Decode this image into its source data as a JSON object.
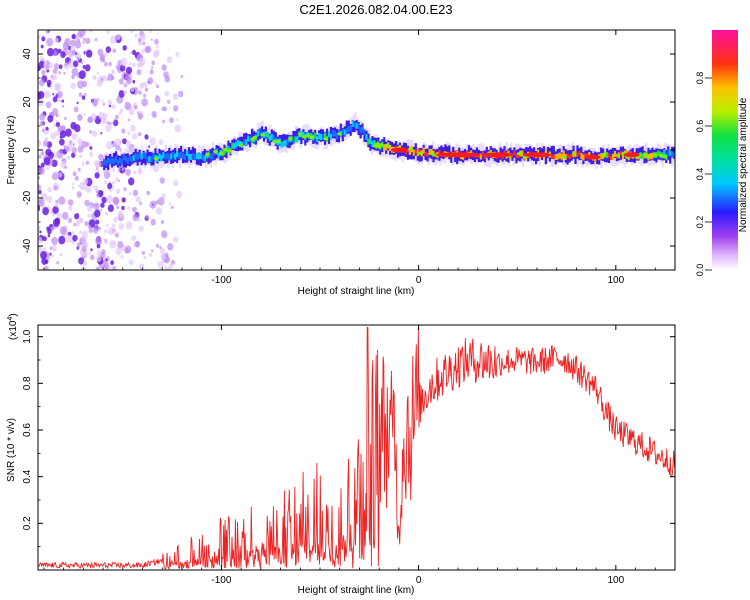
{
  "title": "C2E1.2026.082.04.00.E23",
  "colors": {
    "series": "#ee2222",
    "axis": "#000000",
    "ridge_low": "#3a1ee6",
    "ridge_mid": "#22cc44",
    "ridge_high": "#ff2a2a",
    "noise": "#7a2ee8"
  },
  "chart_data": [
    {
      "type": "heatmap",
      "name": "spectrogram",
      "xlabel": "Height of straight line (km)",
      "ylabel": "Frequency (Hz)",
      "xlim": [
        -193,
        130
      ],
      "ylim": [
        -50,
        50
      ],
      "xticks": [
        -100,
        0,
        100
      ],
      "yticks": [
        -40,
        -20,
        0,
        20,
        40
      ],
      "colorbar": {
        "label": "Normalized spectral amplitude",
        "range": [
          0,
          1
        ],
        "ticks": [
          "0.0",
          "0.2",
          "0.4",
          "0.6",
          "0.8"
        ],
        "tick_values": [
          0.0,
          0.2,
          0.4,
          0.6,
          0.8
        ],
        "colormap": [
          "#ffffff",
          "#d9b0ff",
          "#8a2be2",
          "#2b1bff",
          "#00c8ff",
          "#00e676",
          "#c8f000",
          "#ffb000",
          "#ff1a1a",
          "#ff00aa"
        ]
      },
      "ridge": {
        "x": [
          -160,
          -150,
          -140,
          -130,
          -120,
          -110,
          -100,
          -90,
          -80,
          -70,
          -60,
          -50,
          -40,
          -32,
          -25,
          -15,
          -8,
          0,
          20,
          50,
          70,
          80,
          90,
          100,
          110,
          130
        ],
        "freq": [
          -5,
          -4,
          -3,
          -3,
          -2,
          -3,
          -1,
          3,
          7,
          3,
          6,
          5,
          7,
          11,
          3,
          1,
          0,
          -1,
          -2,
          -2,
          -2,
          -2,
          -3,
          -2,
          -2,
          -2
        ],
        "amp": [
          0.35,
          0.4,
          0.45,
          0.5,
          0.5,
          0.5,
          0.55,
          0.5,
          0.55,
          0.5,
          0.55,
          0.55,
          0.5,
          0.45,
          0.55,
          0.8,
          0.9,
          0.9,
          0.95,
          0.95,
          0.9,
          0.9,
          0.85,
          0.85,
          0.9,
          0.4
        ]
      },
      "noise_region_x": [
        -193,
        -120
      ]
    },
    {
      "type": "line",
      "name": "snr",
      "xlabel": "Height of straight line (km)",
      "ylabel": "SNR (10 * v/v)",
      "scale_label": "(x10",
      "scale_exp": "4",
      "scale_close": ")",
      "xlim": [
        -193,
        130
      ],
      "ylim": [
        0,
        1.05
      ],
      "xticks": [
        -100,
        0,
        100
      ],
      "yticks": [
        0.2,
        0.4,
        0.6,
        0.8,
        1.0
      ],
      "ytick_labels": [
        "0.2",
        "0.4",
        "0.6",
        "0.8",
        "1.0"
      ],
      "series": [
        {
          "name": "SNR",
          "x": [
            -193,
            -170,
            -160,
            -150,
            -140,
            -130,
            -120,
            -110,
            -100,
            -90,
            -80,
            -70,
            -60,
            -50,
            -45,
            -40,
            -35,
            -30,
            -28,
            -26,
            -24,
            -22,
            -20,
            -18,
            -16,
            -14,
            -12,
            -10,
            -8,
            -6,
            -4,
            -2,
            0,
            5,
            10,
            15,
            20,
            25,
            30,
            40,
            50,
            60,
            70,
            75,
            80,
            85,
            90,
            95,
            100,
            110,
            120,
            130
          ],
          "y": [
            0.02,
            0.02,
            0.02,
            0.02,
            0.02,
            0.04,
            0.06,
            0.1,
            0.12,
            0.14,
            0.16,
            0.18,
            0.22,
            0.25,
            0.2,
            0.28,
            0.3,
            0.4,
            0.55,
            0.3,
            0.45,
            0.55,
            0.6,
            0.62,
            0.58,
            0.55,
            0.6,
            0.12,
            0.55,
            0.6,
            0.6,
            0.65,
            0.7,
            0.78,
            0.82,
            0.85,
            0.88,
            0.9,
            0.9,
            0.89,
            0.9,
            0.89,
            0.91,
            0.9,
            0.86,
            0.82,
            0.78,
            0.68,
            0.6,
            0.55,
            0.5,
            0.45
          ]
        }
      ]
    }
  ]
}
